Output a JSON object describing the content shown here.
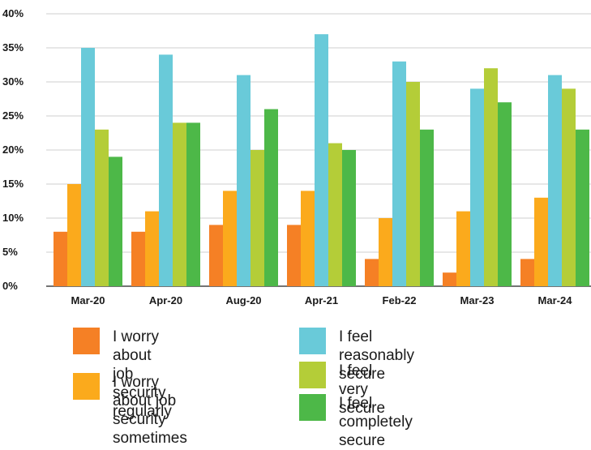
{
  "chart_data": {
    "type": "bar",
    "categories": [
      "Mar-20",
      "Apr-20",
      "Aug-20",
      "Apr-21",
      "Feb-22",
      "Mar-23",
      "Mar-24"
    ],
    "series": [
      {
        "name": "I worry about job security regularly",
        "color": "#f58025",
        "values": [
          8,
          8,
          9,
          9,
          4,
          2,
          4
        ]
      },
      {
        "name": "I worry about job security sometimes",
        "color": "#fbaa1c",
        "values": [
          15,
          11,
          14,
          14,
          10,
          11,
          13
        ]
      },
      {
        "name": "I feel reasonably secure",
        "color": "#69cad9",
        "values": [
          35,
          34,
          31,
          37,
          33,
          29,
          31
        ]
      },
      {
        "name": "I feel very secure",
        "color": "#b4cd38",
        "values": [
          23,
          24,
          20,
          21,
          30,
          32,
          29
        ]
      },
      {
        "name": "I feel completely secure",
        "color": "#4db848",
        "values": [
          19,
          24,
          26,
          20,
          23,
          27,
          23
        ]
      }
    ],
    "yticks": [
      "0%",
      "5%",
      "10%",
      "15%",
      "20%",
      "25%",
      "30%",
      "35%",
      "40%"
    ],
    "ylim": [
      0,
      40
    ],
    "grid": true,
    "legend_position": "bottom"
  },
  "legend": [
    {
      "label": "I worry about job\nsecurity regularly",
      "color": "#f58025"
    },
    {
      "label": "I worry about job\nsecurity sometimes",
      "color": "#fbaa1c"
    },
    {
      "label": "I feel reasonably secure",
      "color": "#69cad9"
    },
    {
      "label": "I feel very secure",
      "color": "#b4cd38"
    },
    {
      "label": "I feel completely secure",
      "color": "#4db848"
    }
  ]
}
